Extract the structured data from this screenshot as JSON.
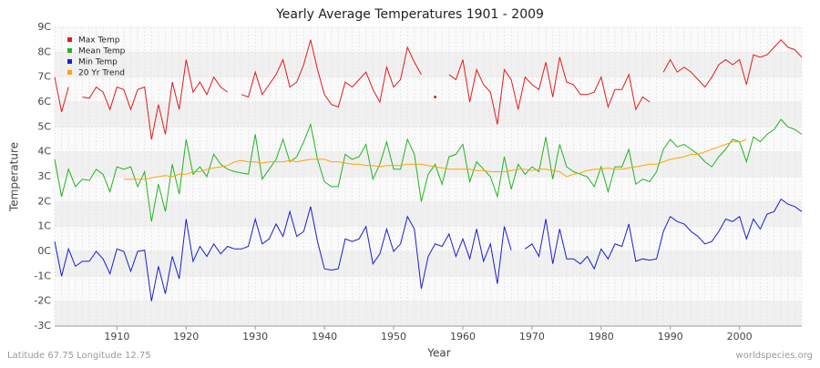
{
  "chart_data": {
    "type": "line",
    "title": "Yearly Average Temperatures 1901 - 2009",
    "xlabel": "Year",
    "ylabel": "Temperature",
    "footer_left": "Latitude 67.75 Longitude 12.75",
    "footer_right": "worldspecies.org",
    "xlim": [
      1901,
      2009
    ],
    "xticks": [
      1910,
      1920,
      1930,
      1940,
      1950,
      1960,
      1970,
      1980,
      1990,
      2000
    ],
    "ylim": [
      -3,
      9
    ],
    "yticks": [
      {
        "value": -3,
        "label": "-3C"
      },
      {
        "value": -2,
        "label": "-2C"
      },
      {
        "value": -1,
        "label": "-1C"
      },
      {
        "value": 0,
        "label": "0C"
      },
      {
        "value": 1,
        "label": "1C"
      },
      {
        "value": 2,
        "label": "2C"
      },
      {
        "value": 3,
        "label": "3C"
      },
      {
        "value": 4,
        "label": "4C"
      },
      {
        "value": 5,
        "label": "5C"
      },
      {
        "value": 6,
        "label": "6C"
      },
      {
        "value": 7,
        "label": "7C"
      },
      {
        "value": 8,
        "label": "8C"
      },
      {
        "value": 9,
        "label": "9C"
      }
    ],
    "grid": true,
    "legend": "top-left",
    "x": [
      1901,
      1902,
      1903,
      1904,
      1905,
      1906,
      1907,
      1908,
      1909,
      1910,
      1911,
      1912,
      1913,
      1914,
      1915,
      1916,
      1917,
      1918,
      1919,
      1920,
      1921,
      1922,
      1923,
      1924,
      1925,
      1926,
      1927,
      1928,
      1929,
      1930,
      1931,
      1932,
      1933,
      1934,
      1935,
      1936,
      1937,
      1938,
      1939,
      1940,
      1941,
      1942,
      1943,
      1944,
      1945,
      1946,
      1947,
      1948,
      1949,
      1950,
      1951,
      1952,
      1953,
      1954,
      1955,
      1956,
      1957,
      1958,
      1959,
      1960,
      1961,
      1962,
      1963,
      1964,
      1965,
      1966,
      1967,
      1968,
      1969,
      1970,
      1971,
      1972,
      1973,
      1974,
      1975,
      1976,
      1977,
      1978,
      1979,
      1980,
      1981,
      1982,
      1983,
      1984,
      1985,
      1986,
      1987,
      1988,
      1989,
      1990,
      1991,
      1992,
      1993,
      1994,
      1995,
      1996,
      1997,
      1998,
      1999,
      2000,
      2001,
      2002,
      2003,
      2004,
      2005,
      2006,
      2007,
      2008,
      2009
    ],
    "series": [
      {
        "name": "Max Temp",
        "color": "#e41a1c",
        "values": [
          7.0,
          5.6,
          6.6,
          null,
          6.2,
          6.15,
          6.6,
          6.4,
          5.7,
          6.6,
          6.5,
          5.7,
          6.5,
          6.6,
          4.5,
          5.9,
          4.7,
          6.8,
          5.7,
          7.7,
          6.4,
          6.8,
          6.3,
          7.0,
          6.6,
          6.4,
          null,
          6.3,
          6.2,
          7.2,
          6.3,
          6.7,
          7.1,
          7.7,
          6.6,
          6.8,
          7.5,
          8.5,
          7.3,
          6.3,
          5.9,
          5.8,
          6.8,
          6.6,
          6.9,
          7.2,
          6.5,
          6.0,
          7.4,
          6.6,
          6.9,
          8.2,
          7.6,
          7.1,
          null,
          6.2,
          null,
          7.1,
          6.9,
          7.7,
          6.0,
          7.3,
          6.7,
          6.4,
          5.1,
          7.3,
          6.9,
          5.7,
          7.0,
          6.7,
          6.5,
          7.6,
          6.2,
          7.8,
          6.8,
          6.7,
          6.3,
          6.3,
          6.4,
          7.0,
          5.8,
          6.5,
          6.5,
          7.1,
          5.7,
          6.2,
          6.0,
          null,
          7.2,
          7.7,
          7.2,
          7.4,
          7.2,
          6.9,
          6.6,
          7.0,
          7.5,
          7.7,
          7.5,
          7.7,
          6.7,
          7.9,
          7.8,
          7.9,
          8.2,
          8.5,
          8.2,
          8.1,
          7.8
        ]
      },
      {
        "name": "Mean Temp",
        "color": "#1fb51f",
        "values": [
          3.7,
          2.2,
          3.3,
          2.6,
          2.9,
          2.85,
          3.3,
          3.1,
          2.4,
          3.4,
          3.3,
          3.4,
          2.6,
          3.2,
          1.2,
          2.7,
          1.6,
          3.5,
          2.3,
          4.5,
          3.1,
          3.4,
          3.0,
          3.9,
          3.5,
          3.3,
          3.2,
          3.15,
          3.1,
          4.7,
          2.9,
          3.3,
          3.7,
          4.5,
          3.6,
          3.8,
          4.4,
          5.1,
          3.7,
          2.8,
          2.6,
          2.6,
          3.9,
          3.7,
          3.8,
          4.3,
          2.9,
          3.5,
          4.4,
          3.3,
          3.3,
          4.5,
          3.9,
          2.0,
          3.1,
          3.5,
          2.7,
          3.8,
          3.9,
          4.3,
          2.8,
          3.6,
          3.3,
          3.0,
          2.2,
          3.8,
          2.5,
          3.5,
          3.1,
          3.4,
          3.2,
          4.6,
          2.9,
          4.3,
          3.4,
          3.2,
          3.1,
          3.0,
          2.6,
          3.4,
          2.4,
          3.4,
          3.4,
          4.1,
          2.7,
          2.9,
          2.8,
          3.2,
          4.1,
          4.5,
          4.2,
          4.3,
          4.1,
          3.9,
          3.6,
          3.4,
          3.8,
          4.1,
          4.5,
          4.4,
          3.6,
          4.6,
          4.4,
          4.7,
          4.9,
          5.3,
          5.0,
          4.9,
          4.7
        ]
      },
      {
        "name": "Min Temp",
        "color": "#1c1cd4",
        "values": [
          0.4,
          -1.0,
          0.1,
          -0.6,
          -0.4,
          -0.4,
          0.0,
          -0.3,
          -0.9,
          0.1,
          0.0,
          -0.8,
          0.0,
          0.05,
          -2.0,
          -0.6,
          -1.7,
          -0.2,
          -1.1,
          1.3,
          -0.4,
          0.2,
          -0.2,
          0.3,
          -0.1,
          0.2,
          0.1,
          0.1,
          0.2,
          1.3,
          0.3,
          0.5,
          1.1,
          0.6,
          1.6,
          0.6,
          0.8,
          1.8,
          0.4,
          -0.7,
          -0.75,
          -0.7,
          0.5,
          0.4,
          0.5,
          1.0,
          -0.5,
          -0.1,
          0.9,
          0.0,
          0.3,
          1.4,
          0.9,
          -1.5,
          -0.2,
          0.3,
          0.2,
          0.7,
          -0.2,
          0.5,
          -0.3,
          0.9,
          -0.4,
          0.3,
          -1.3,
          1.0,
          0.05,
          null,
          0.1,
          0.3,
          -0.2,
          1.3,
          -0.5,
          0.9,
          -0.3,
          -0.3,
          -0.5,
          -0.2,
          -0.7,
          0.1,
          -0.3,
          0.3,
          0.2,
          1.1,
          -0.4,
          -0.3,
          -0.35,
          -0.3,
          0.8,
          1.4,
          1.2,
          1.1,
          0.8,
          0.6,
          0.3,
          0.4,
          0.8,
          1.3,
          1.2,
          1.4,
          0.5,
          1.3,
          0.9,
          1.5,
          1.6,
          2.1,
          1.9,
          1.8,
          1.6
        ]
      },
      {
        "name": "20 Yr Trend",
        "color": "#ffa500",
        "values": [
          null,
          null,
          null,
          null,
          null,
          null,
          null,
          null,
          null,
          null,
          2.9,
          2.9,
          2.9,
          2.9,
          2.95,
          3.0,
          3.05,
          3.0,
          3.1,
          3.1,
          3.2,
          3.2,
          3.3,
          3.35,
          3.4,
          3.45,
          3.6,
          3.65,
          3.6,
          3.6,
          3.55,
          3.6,
          3.6,
          3.6,
          3.65,
          3.6,
          3.65,
          3.7,
          3.7,
          3.7,
          3.6,
          3.6,
          3.55,
          3.5,
          3.5,
          3.45,
          3.45,
          3.4,
          3.45,
          3.45,
          3.45,
          3.5,
          3.5,
          3.5,
          3.45,
          3.4,
          3.35,
          3.3,
          3.3,
          3.3,
          3.3,
          3.25,
          3.25,
          3.2,
          3.2,
          3.2,
          3.25,
          3.3,
          3.3,
          3.25,
          3.3,
          3.3,
          3.25,
          3.2,
          3.0,
          3.1,
          3.15,
          3.25,
          3.3,
          3.3,
          3.35,
          3.3,
          3.3,
          3.35,
          3.4,
          3.45,
          3.5,
          3.5,
          3.6,
          3.7,
          3.75,
          3.8,
          3.9,
          3.9,
          4.0,
          4.1,
          4.2,
          4.3,
          4.4,
          4.4,
          4.5,
          null,
          null,
          null,
          null,
          null,
          null,
          null,
          null
        ]
      }
    ]
  }
}
